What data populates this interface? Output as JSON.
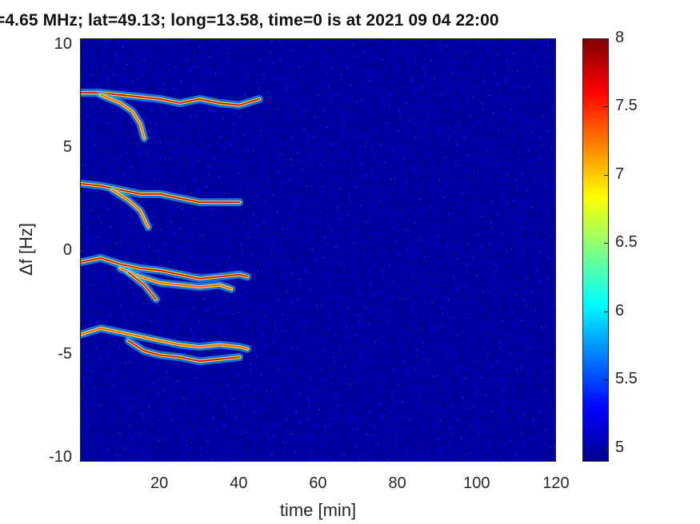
{
  "chart_data": {
    "type": "heatmap",
    "title": "=4.65 MHz;  lat=49.13; long=13.58, time=0 is at 2021 09 04 22:00",
    "xlabel": "time [min]",
    "ylabel": "Δf [Hz]",
    "xlim": [
      0,
      120
    ],
    "ylim": [
      -10.2,
      10.3
    ],
    "xticks": [
      20,
      40,
      60,
      80,
      100,
      120
    ],
    "xtick_labels": [
      "20",
      "40",
      "60",
      "80",
      "100",
      "120"
    ],
    "yticks": [
      10,
      5,
      0,
      -5,
      -10
    ],
    "ytick_labels": [
      "10",
      "5",
      "0",
      "-5",
      "-10"
    ],
    "colormap": "jet",
    "clim": [
      4.9,
      8
    ],
    "colorbar_ticks": [
      8,
      7.5,
      7,
      6.5,
      6,
      5.5,
      5
    ],
    "colorbar_tick_labels": [
      "8",
      "7.5",
      "7",
      "6.5",
      "6",
      "5.5",
      "5"
    ],
    "background_value": 5.0,
    "grid": false,
    "traces": [
      {
        "name": "",
        "points": [
          [
            0,
            7.7
          ],
          [
            5,
            7.7
          ],
          [
            10,
            7.6
          ],
          [
            15,
            7.5
          ],
          [
            20,
            7.4
          ],
          [
            25,
            7.2
          ],
          [
            30,
            7.4
          ],
          [
            35,
            7.2
          ],
          [
            40,
            7.1
          ],
          [
            45,
            7.4
          ]
        ]
      },
      {
        "name": "",
        "points": [
          [
            5,
            7.6
          ],
          [
            10,
            7.2
          ],
          [
            13,
            6.8
          ],
          [
            15,
            6.2
          ],
          [
            16,
            5.5
          ]
        ]
      },
      {
        "name": "",
        "points": [
          [
            0,
            3.3
          ],
          [
            5,
            3.2
          ],
          [
            10,
            3.0
          ],
          [
            15,
            2.8
          ],
          [
            20,
            2.8
          ],
          [
            25,
            2.6
          ],
          [
            30,
            2.4
          ],
          [
            35,
            2.4
          ],
          [
            40,
            2.4
          ]
        ]
      },
      {
        "name": "",
        "points": [
          [
            8,
            3.0
          ],
          [
            12,
            2.5
          ],
          [
            15,
            2.0
          ],
          [
            17,
            1.2
          ]
        ]
      },
      {
        "name": "",
        "points": [
          [
            0,
            -0.5
          ],
          [
            5,
            -0.3
          ],
          [
            10,
            -0.6
          ],
          [
            15,
            -0.8
          ],
          [
            20,
            -0.9
          ],
          [
            25,
            -1.1
          ],
          [
            30,
            -1.3
          ],
          [
            35,
            -1.2
          ],
          [
            40,
            -1.1
          ],
          [
            42,
            -1.2
          ]
        ]
      },
      {
        "name": "",
        "points": [
          [
            10,
            -0.8
          ],
          [
            15,
            -1.2
          ],
          [
            20,
            -1.5
          ],
          [
            25,
            -1.6
          ],
          [
            30,
            -1.7
          ],
          [
            35,
            -1.6
          ],
          [
            38,
            -1.8
          ]
        ]
      },
      {
        "name": "",
        "points": [
          [
            12,
            -1.0
          ],
          [
            16,
            -1.6
          ],
          [
            19,
            -2.3
          ]
        ]
      },
      {
        "name": "",
        "points": [
          [
            0,
            -4.0
          ],
          [
            5,
            -3.7
          ],
          [
            10,
            -3.9
          ],
          [
            15,
            -4.1
          ],
          [
            20,
            -4.3
          ],
          [
            25,
            -4.5
          ],
          [
            30,
            -4.6
          ],
          [
            35,
            -4.5
          ],
          [
            40,
            -4.6
          ],
          [
            42,
            -4.7
          ]
        ]
      },
      {
        "name": "",
        "points": [
          [
            12,
            -4.3
          ],
          [
            16,
            -4.8
          ],
          [
            20,
            -5.0
          ],
          [
            25,
            -5.1
          ],
          [
            30,
            -5.3
          ],
          [
            35,
            -5.2
          ],
          [
            40,
            -5.1
          ]
        ]
      }
    ]
  }
}
